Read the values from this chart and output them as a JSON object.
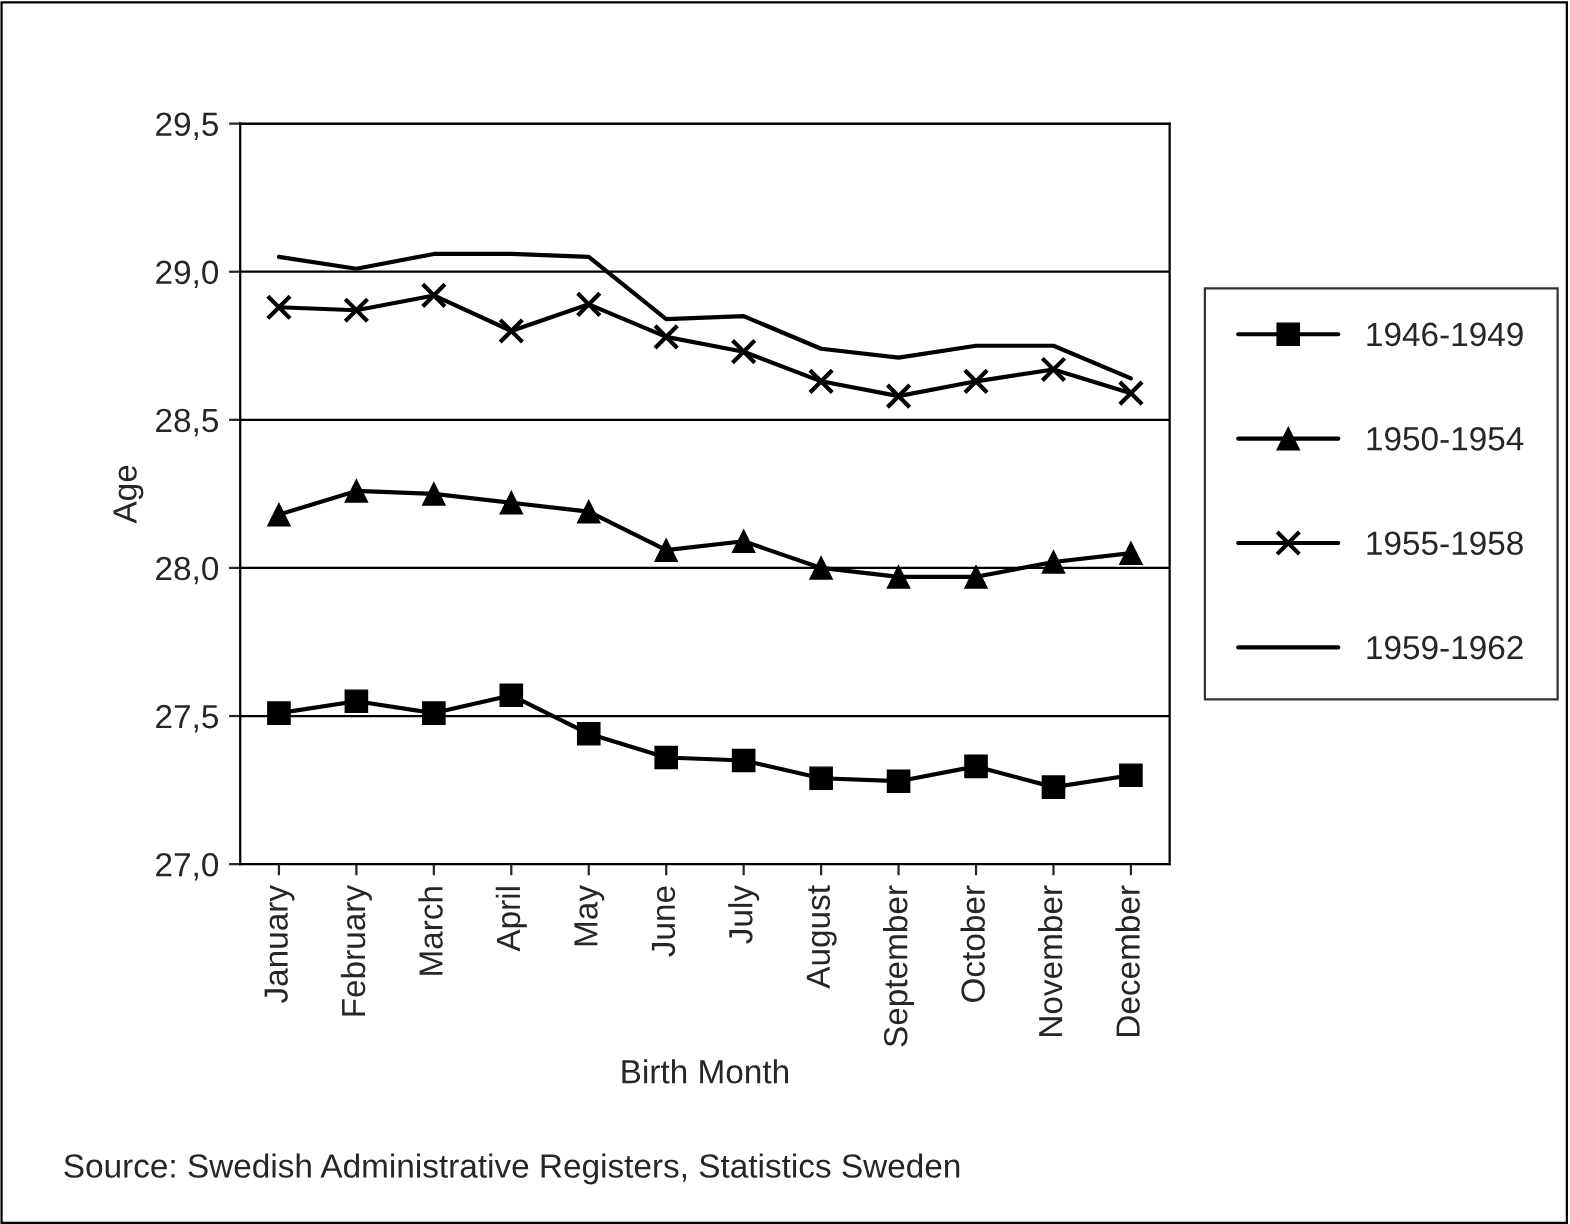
{
  "chart_data": {
    "type": "line",
    "xlabel": "Birth Month",
    "ylabel": "Age",
    "categories": [
      "January",
      "February",
      "March",
      "April",
      "May",
      "June",
      "July",
      "August",
      "September",
      "October",
      "November",
      "December"
    ],
    "series": [
      {
        "name": "1946-1949",
        "color": "#000000",
        "marker": "square",
        "values": [
          27.51,
          27.55,
          27.51,
          27.57,
          27.44,
          27.36,
          27.35,
          27.29,
          27.28,
          27.33,
          27.26,
          27.3
        ]
      },
      {
        "name": "1950-1954",
        "color": "#000000",
        "marker": "triangle",
        "values": [
          28.18,
          28.26,
          28.25,
          28.22,
          28.19,
          28.06,
          28.09,
          28.0,
          27.97,
          27.97,
          28.02,
          28.05
        ]
      },
      {
        "name": "1955-1958",
        "color": "#000000",
        "marker": "cross",
        "values": [
          28.88,
          28.87,
          28.92,
          28.8,
          28.89,
          28.78,
          28.73,
          28.63,
          28.58,
          28.63,
          28.67,
          28.59
        ]
      },
      {
        "name": "1959-1962",
        "color": "#000000",
        "marker": "none",
        "values": [
          29.05,
          29.01,
          29.06,
          29.06,
          29.05,
          28.84,
          28.85,
          28.74,
          28.71,
          28.75,
          28.75,
          28.64
        ]
      }
    ],
    "ylim": [
      27.0,
      29.5
    ],
    "yticks": [
      {
        "value": 27.0,
        "label": "27,0"
      },
      {
        "value": 27.5,
        "label": "27,5"
      },
      {
        "value": 28.0,
        "label": "28,0"
      },
      {
        "value": 28.5,
        "label": "28,5"
      },
      {
        "value": 29.0,
        "label": "29,0"
      },
      {
        "value": 29.5,
        "label": "29,5"
      }
    ],
    "grid": "y",
    "legend": "right",
    "line_style": "solid",
    "annotations": [
      "Source: Swedish Administrative Registers, Statistics Sweden"
    ]
  }
}
